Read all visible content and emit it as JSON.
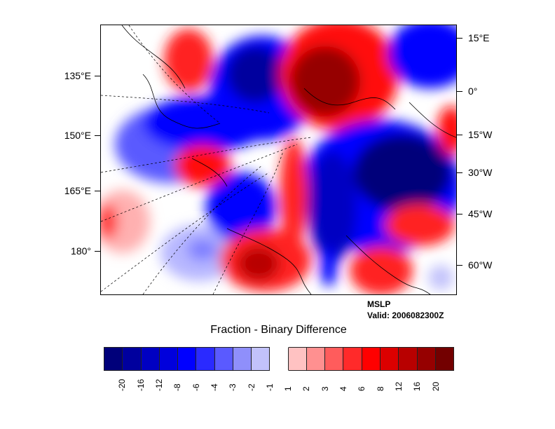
{
  "map": {
    "field": "MSLP",
    "valid": "Valid: 2006082300Z",
    "title": "Fraction - Binary Difference",
    "left_labels": [
      "135°E",
      "150°E",
      "165°E",
      "180°"
    ],
    "right_labels": [
      "15°E",
      "0°",
      "15°W",
      "30°W",
      "45°W",
      "60°W"
    ]
  },
  "colorbar": {
    "colors": [
      "#00007a",
      "#00009e",
      "#0000c2",
      "#0000dc",
      "#0000ff",
      "#2a2aff",
      "#5a5aff",
      "#8f8ffb",
      "#c2c2fb",
      "#ffffff",
      "#ffc2c2",
      "#ff9090",
      "#ff5c5c",
      "#ff2a2a",
      "#ff0000",
      "#dc0000",
      "#b80000",
      "#960000",
      "#730000"
    ],
    "labels": [
      "-20",
      "-16",
      "-12",
      "-8",
      "-6",
      "-4",
      "-3",
      "-2",
      "-1",
      "1",
      "2",
      "3",
      "4",
      "6",
      "8",
      "12",
      "16",
      "20"
    ]
  }
}
